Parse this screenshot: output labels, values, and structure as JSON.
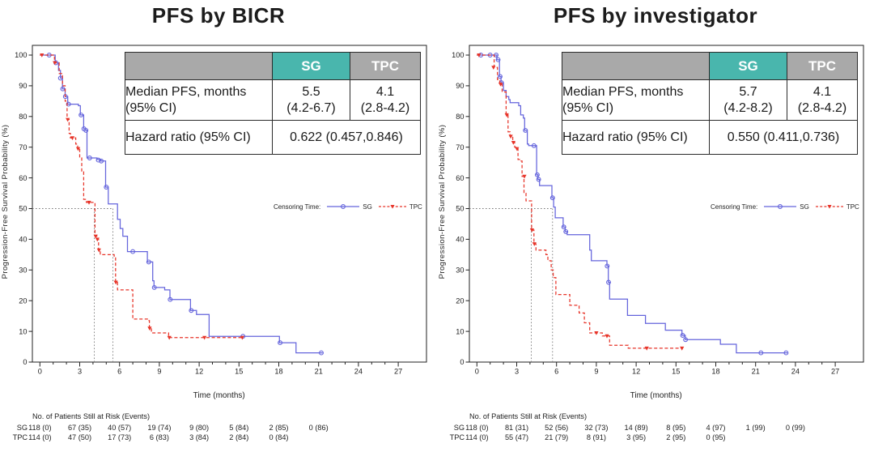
{
  "figure": {
    "background": "#ffffff"
  },
  "chart_data": [
    {
      "type": "km_survival",
      "title": "PFS by BICR",
      "xlabel": "Time (months)",
      "ylabel": "Progression-Free Survival Probability (%)",
      "xlim": [
        0,
        27
      ],
      "xtick_step": 3,
      "xminor_step": 1,
      "ylim": [
        0,
        100
      ],
      "ytick_step": 10,
      "grid": false,
      "median_months": {
        "SG": 5.5,
        "TPC": 4.1
      },
      "legend_label": "Censoring Time:",
      "stats_table": {
        "headers": {
          "sg": "SG",
          "tpc": "TPC"
        },
        "header_colors": {
          "sg_bg": "#49b6ad",
          "tpc_bg": "#a9a9a9"
        },
        "median_row": {
          "label_line1": "Median PFS, months",
          "label_line2": "(95% CI)",
          "sg_line1": "5.5",
          "sg_line2": "(4.2-6.7)",
          "tpc_line1": "4.1",
          "tpc_line2": "(2.8-4.2)"
        },
        "hazard_row": {
          "label": "Hazard ratio (95% CI)",
          "value": "0.622 (0.457,0.846)"
        }
      },
      "series": [
        {
          "name": "SG",
          "color": "#6464dc",
          "line": "solid",
          "marker": "circle",
          "steps": [
            [
              0,
              100
            ],
            [
              1.15,
              97.5
            ],
            [
              1.4,
              95
            ],
            [
              1.55,
              92.5
            ],
            [
              1.7,
              89
            ],
            [
              1.9,
              86.5
            ],
            [
              2.1,
              84
            ],
            [
              2.9,
              83.5
            ],
            [
              3.05,
              80.5
            ],
            [
              3.3,
              76
            ],
            [
              3.45,
              75.5
            ],
            [
              3.55,
              66.5
            ],
            [
              4.3,
              66
            ],
            [
              4.6,
              65.5
            ],
            [
              4.95,
              57
            ],
            [
              5.15,
              51.5
            ],
            [
              5.85,
              46.5
            ],
            [
              6.05,
              43.5
            ],
            [
              6.25,
              41
            ],
            [
              6.6,
              36
            ],
            [
              8.1,
              32.6
            ],
            [
              8.5,
              26.5
            ],
            [
              8.6,
              24.3
            ],
            [
              9.4,
              23.5
            ],
            [
              9.8,
              20.4
            ],
            [
              11.35,
              16.8
            ],
            [
              11.8,
              15.5
            ],
            [
              12.75,
              8.4
            ],
            [
              18.05,
              6.3
            ],
            [
              19.3,
              3
            ],
            [
              21.3,
              3
            ]
          ],
          "censors": [
            [
              0.7,
              100
            ],
            [
              1.2,
              97.5
            ],
            [
              1.55,
              92.5
            ],
            [
              1.72,
              89
            ],
            [
              1.92,
              86.5
            ],
            [
              2.15,
              84
            ],
            [
              3.1,
              80.5
            ],
            [
              3.32,
              76
            ],
            [
              3.47,
              75.5
            ],
            [
              3.75,
              66.5
            ],
            [
              4.4,
              65.8
            ],
            [
              4.62,
              65.5
            ],
            [
              5.0,
              57
            ],
            [
              7.0,
              36
            ],
            [
              8.2,
              32.6
            ],
            [
              8.62,
              24.3
            ],
            [
              9.82,
              20.4
            ],
            [
              11.4,
              16.8
            ],
            [
              15.3,
              8.4
            ],
            [
              18.1,
              6.3
            ],
            [
              21.2,
              3
            ]
          ]
        },
        {
          "name": "TPC",
          "color": "#e73429",
          "line": "dashed",
          "marker": "triangle",
          "steps": [
            [
              0,
              100
            ],
            [
              1.1,
              97.5
            ],
            [
              1.45,
              94
            ],
            [
              1.7,
              90
            ],
            [
              1.9,
              85
            ],
            [
              2.05,
              79
            ],
            [
              2.2,
              74.5
            ],
            [
              2.3,
              73
            ],
            [
              2.7,
              71
            ],
            [
              2.85,
              69.5
            ],
            [
              3.0,
              66.5
            ],
            [
              3.15,
              62
            ],
            [
              3.3,
              53
            ],
            [
              3.5,
              52
            ],
            [
              4.15,
              41
            ],
            [
              4.3,
              40
            ],
            [
              4.42,
              36.5
            ],
            [
              4.55,
              35
            ],
            [
              5.6,
              34.5
            ],
            [
              5.7,
              26
            ],
            [
              5.85,
              23.5
            ],
            [
              7.0,
              14
            ],
            [
              8.15,
              13.5
            ],
            [
              8.25,
              11
            ],
            [
              8.4,
              9.5
            ],
            [
              9.7,
              8
            ],
            [
              15.3,
              8
            ]
          ],
          "censors": [
            [
              0.15,
              100
            ],
            [
              1.12,
              97.5
            ],
            [
              2.1,
              79
            ],
            [
              2.45,
              73
            ],
            [
              2.88,
              69.5
            ],
            [
              3.7,
              52
            ],
            [
              4.2,
              41
            ],
            [
              4.33,
              40
            ],
            [
              4.45,
              36.5
            ],
            [
              5.72,
              26
            ],
            [
              8.27,
              11
            ],
            [
              9.75,
              8
            ],
            [
              12.4,
              8
            ],
            [
              15.25,
              8
            ]
          ]
        }
      ],
      "risk_table": {
        "title": "No. of Patients Still at Risk (Events)",
        "time_step": 3,
        "rows": [
          {
            "name": "SG",
            "values": [
              "118 (0)",
              "67 (35)",
              "40 (57)",
              "19 (74)",
              "9 (80)",
              "5 (84)",
              "2 (85)",
              "0 (86)"
            ]
          },
          {
            "name": "TPC",
            "values": [
              "114 (0)",
              "47 (50)",
              "17 (73)",
              "6 (83)",
              "3 (84)",
              "2 (84)",
              "0 (84)"
            ]
          }
        ]
      }
    },
    {
      "type": "km_survival",
      "title": "PFS by investigator",
      "xlabel": "Time (months)",
      "ylabel": "Progression-Free Survival Probability (%)",
      "xlim": [
        0,
        27
      ],
      "xtick_step": 3,
      "xminor_step": 1,
      "ylim": [
        0,
        100
      ],
      "ytick_step": 10,
      "grid": false,
      "median_months": {
        "SG": 5.7,
        "TPC": 4.1
      },
      "legend_label": "Censoring Time:",
      "stats_table": {
        "headers": {
          "sg": "SG",
          "tpc": "TPC"
        },
        "header_colors": {
          "sg_bg": "#49b6ad",
          "tpc_bg": "#a9a9a9"
        },
        "median_row": {
          "label_line1": "Median PFS, months",
          "label_line2": "(95% CI)",
          "sg_line1": "5.7",
          "sg_line2": "(4.2-8.2)",
          "tpc_line1": "4.1",
          "tpc_line2": "(2.8-4.2)"
        },
        "hazard_row": {
          "label": "Hazard ratio (95% CI)",
          "value": "0.550 (0.411,0.736)"
        }
      },
      "series": [
        {
          "name": "SG",
          "color": "#6464dc",
          "line": "solid",
          "marker": "circle",
          "steps": [
            [
              0,
              100
            ],
            [
              1.5,
              98.5
            ],
            [
              1.7,
              93
            ],
            [
              1.82,
              91
            ],
            [
              2.0,
              88.5
            ],
            [
              2.2,
              86.5
            ],
            [
              2.4,
              85.5
            ],
            [
              2.5,
              84.5
            ],
            [
              3.15,
              83.5
            ],
            [
              3.3,
              80.5
            ],
            [
              3.5,
              79.5
            ],
            [
              3.6,
              75.5
            ],
            [
              3.8,
              71
            ],
            [
              3.9,
              70.5
            ],
            [
              4.5,
              61
            ],
            [
              4.6,
              59.5
            ],
            [
              4.72,
              57.5
            ],
            [
              5.65,
              53.5
            ],
            [
              5.78,
              50.5
            ],
            [
              5.9,
              47
            ],
            [
              6.5,
              44
            ],
            [
              6.65,
              42.5
            ],
            [
              6.8,
              41.5
            ],
            [
              8.5,
              36.5
            ],
            [
              8.62,
              33
            ],
            [
              9.8,
              31.3
            ],
            [
              9.9,
              26
            ],
            [
              10.0,
              20.5
            ],
            [
              11.35,
              15.2
            ],
            [
              12.7,
              12.6
            ],
            [
              14.2,
              10.4
            ],
            [
              15.45,
              8.7
            ],
            [
              15.7,
              7.3
            ],
            [
              18.35,
              5.8
            ],
            [
              19.55,
              3
            ],
            [
              23.4,
              3
            ]
          ],
          "censors": [
            [
              0.3,
              100
            ],
            [
              1.0,
              100
            ],
            [
              1.45,
              100
            ],
            [
              1.6,
              98.5
            ],
            [
              1.75,
              93
            ],
            [
              1.85,
              91
            ],
            [
              3.65,
              75.5
            ],
            [
              4.3,
              70.5
            ],
            [
              4.55,
              61
            ],
            [
              4.65,
              59.5
            ],
            [
              5.7,
              53.5
            ],
            [
              6.55,
              44
            ],
            [
              6.7,
              42.5
            ],
            [
              9.82,
              31.3
            ],
            [
              9.92,
              26
            ],
            [
              15.5,
              8.7
            ],
            [
              15.72,
              7.3
            ],
            [
              21.4,
              3
            ],
            [
              23.3,
              3
            ]
          ]
        },
        {
          "name": "TPC",
          "color": "#e73429",
          "line": "dashed",
          "marker": "triangle",
          "steps": [
            [
              0,
              100
            ],
            [
              1.3,
              96
            ],
            [
              1.55,
              92
            ],
            [
              1.72,
              90.5
            ],
            [
              1.9,
              88
            ],
            [
              2.2,
              80.5
            ],
            [
              2.35,
              75
            ],
            [
              2.5,
              73.5
            ],
            [
              2.7,
              71.5
            ],
            [
              2.85,
              70
            ],
            [
              3.0,
              69.5
            ],
            [
              3.1,
              66
            ],
            [
              3.28,
              65.5
            ],
            [
              3.4,
              60.5
            ],
            [
              3.55,
              55
            ],
            [
              3.7,
              52.5
            ],
            [
              4.12,
              43
            ],
            [
              4.3,
              38.5
            ],
            [
              4.45,
              36.5
            ],
            [
              5.2,
              35
            ],
            [
              5.35,
              33
            ],
            [
              5.6,
              30
            ],
            [
              5.75,
              27.5
            ],
            [
              5.95,
              22
            ],
            [
              7.0,
              18.5
            ],
            [
              7.7,
              16
            ],
            [
              8.1,
              12.8
            ],
            [
              8.5,
              9.5
            ],
            [
              9.45,
              8.5
            ],
            [
              10.0,
              5.5
            ],
            [
              11.4,
              4.5
            ],
            [
              15.5,
              4.5
            ]
          ],
          "censors": [
            [
              0.15,
              100
            ],
            [
              1.25,
              96
            ],
            [
              1.78,
              90.5
            ],
            [
              2.25,
              80.5
            ],
            [
              2.55,
              73.5
            ],
            [
              2.75,
              71.5
            ],
            [
              3.02,
              69.5
            ],
            [
              3.58,
              60.5
            ],
            [
              4.15,
              43
            ],
            [
              4.33,
              38.5
            ],
            [
              9.0,
              9.5
            ],
            [
              9.8,
              8.5
            ],
            [
              12.8,
              4.5
            ],
            [
              15.45,
              4.5
            ]
          ]
        }
      ],
      "risk_table": {
        "title": "No. of Patients Still at Risk (Events)",
        "time_step": 3,
        "rows": [
          {
            "name": "SG",
            "values": [
              "118 (0)",
              "81 (31)",
              "52 (56)",
              "32 (73)",
              "14 (89)",
              "8 (95)",
              "4 (97)",
              "1 (99)",
              "0 (99)"
            ]
          },
          {
            "name": "TPC",
            "values": [
              "114 (0)",
              "55 (47)",
              "21 (79)",
              "8 (91)",
              "3 (95)",
              "2 (95)",
              "0 (95)"
            ]
          }
        ]
      }
    }
  ]
}
